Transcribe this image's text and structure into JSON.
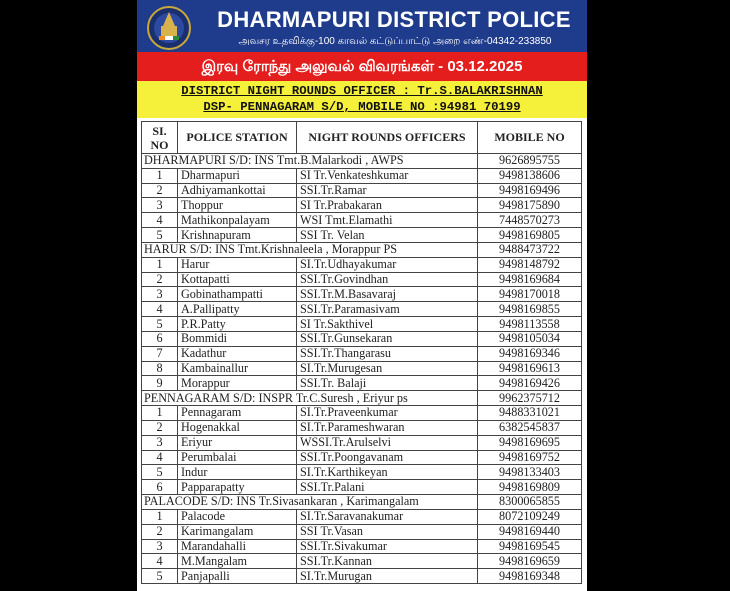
{
  "header": {
    "title": "DHARMAPURI DISTRICT POLICE",
    "subtitle": "அவசர உதவிக்கு-100 காவல் கட்டுப்பாட்டு அறை எண்-04342-233850",
    "logo_text": "TAMILNADU POLICE"
  },
  "banner": "இரவு ரோந்து அலுவல் விவரங்கள் - 03.12.2025",
  "officer": {
    "line1": "DISTRICT  NIGHT ROUNDS OFFICER : Tr.S.BALAKRISHNAN",
    "line2": "DSP- PENNAGARAM S/D,   MOBILE NO :94981 70199"
  },
  "colors": {
    "header_blue": "#1f3c8c",
    "banner_red": "#e41d1d",
    "officer_yellow": "#f5f03a"
  },
  "table": {
    "headers": [
      "SI. NO",
      "POLICE STATION",
      "NIGHT ROUNDS  OFFICERS",
      "MOBILE NO"
    ],
    "sections": [
      {
        "title": "DHARMAPURI S/D: INS Tmt.B.Malarkodi , AWPS",
        "mobile": "9626895755",
        "rows": [
          [
            "1",
            "Dharmapuri",
            "SI Tr.Venkateshkumar",
            "9498138606"
          ],
          [
            "2",
            "Adhiyamankottai",
            "SSI.Tr.Ramar",
            "9498169496"
          ],
          [
            "3",
            "Thoppur",
            "SI Tr.Prabakaran",
            "9498175890"
          ],
          [
            "4",
            "Mathikonpalayam",
            "WSI Tmt.Elamathi",
            "7448570273"
          ],
          [
            "5",
            "Krishnapuram",
            "SSI Tr. Velan",
            "9498169805"
          ]
        ]
      },
      {
        "title": "HARUR S/D: INS Tmt.Krishnaleela , Morappur PS",
        "mobile": "9488473722",
        "rows": [
          [
            "1",
            "Harur",
            "SI.Tr.Udhayakumar",
            "9498148792"
          ],
          [
            "2",
            "Kottapatti",
            "SSI.Tr.Govindhan",
            "9498169684"
          ],
          [
            "3",
            "Gobinathampatti",
            "SSI.Tr.M.Basavaraj",
            "9498170018"
          ],
          [
            "4",
            "A.Pallipatty",
            "SSI.Tr.Paramasivam",
            "9498169855"
          ],
          [
            "5",
            "P.R.Patty",
            "SI Tr.Sakthivel",
            "9498113558"
          ],
          [
            "6",
            "Bommidi",
            "SSI.Tr.Gunsekaran",
            "9498105034"
          ],
          [
            "7",
            "Kadathur",
            "SSI.Tr.Thangarasu",
            "9498169346"
          ],
          [
            "8",
            "Kambainallur",
            "SI.Tr.Murugesan",
            "9498169613"
          ],
          [
            "9",
            "Morappur",
            "SSI.Tr. Balaji",
            "9498169426"
          ]
        ]
      },
      {
        "title": "PENNAGARAM S/D:  INSPR Tr.C.Suresh , Eriyur ps",
        "mobile": "9962375712",
        "rows": [
          [
            "1",
            "Pennagaram",
            "SI.Tr.Praveenkumar",
            "9488331021"
          ],
          [
            "2",
            "Hogenakkal",
            "SI.Tr.Parameshwaran",
            "6382545837"
          ],
          [
            "3",
            "Eriyur",
            "WSSI.Tr.Arulselvi",
            "9498169695"
          ],
          [
            "4",
            "Perumbalai",
            "SSI.Tr.Poongavanam",
            "9498169752"
          ],
          [
            "5",
            "Indur",
            "SI.Tr.Karthikeyan",
            "9498133403"
          ],
          [
            "6",
            "Papparapatty",
            "SSI.Tr.Palani",
            "9498169809"
          ]
        ]
      },
      {
        "title": "PALACODE  S/D: INS Tr.Sivasankaran , Karimangalam",
        "mobile": "8300065855",
        "rows": [
          [
            "1",
            "Palacode",
            "SI.Tr.Saravanakumar",
            "8072109249"
          ],
          [
            "2",
            "Karimangalam",
            "SSI Tr.Vasan",
            "9498169440"
          ],
          [
            "3",
            "Marandahalli",
            "SSI.Tr.Sivakumar",
            "9498169545"
          ],
          [
            "4",
            "M.Mangalam",
            "SSI.Tr.Kannan",
            "9498169659"
          ],
          [
            "5",
            "Panjapalli",
            "SI.Tr.Murugan",
            "9498169348"
          ]
        ]
      }
    ]
  }
}
